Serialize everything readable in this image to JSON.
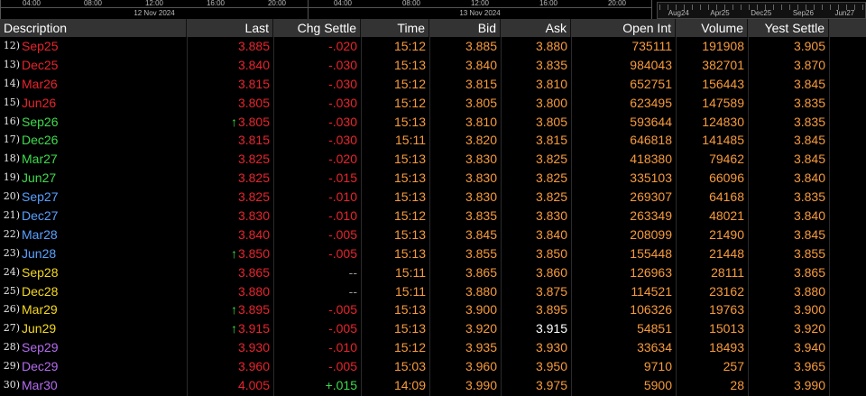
{
  "top": {
    "chart1": {
      "ticks": [
        "04:00",
        "08:00",
        "12:00",
        "16:00",
        "20:00"
      ],
      "date": "12 Nov 2024"
    },
    "chart2": {
      "ticks": [
        "04:00",
        "08:00",
        "12:00",
        "16:00",
        "20:00"
      ],
      "date": "13 Nov 2024"
    },
    "calendar": {
      "labels": [
        "Aug24",
        "Apr25",
        "Dec25",
        "Sep26",
        "Jun27"
      ]
    }
  },
  "colors": {
    "red": "#e8242d",
    "orange": "#f79a3b",
    "green": "#3ddc4c",
    "blue": "#5aa0ff",
    "yellow": "#f5d81e",
    "purple": "#b46cf0",
    "white": "#ffffff"
  },
  "header": {
    "description": "Description",
    "last": "Last",
    "chg_settle": "Chg Settle",
    "time": "Time",
    "bid": "Bid",
    "ask": "Ask",
    "open_int": "Open Int",
    "volume": "Volume",
    "yest_settle": "Yest Settle"
  },
  "rows": [
    {
      "idx": "12)",
      "sym": "Sep25",
      "symc": "red",
      "last": "3.885",
      "arrow": "",
      "chg": "-.020",
      "chgc": "red",
      "time": "15:12",
      "bid": "3.885",
      "ask": "3.880",
      "askc": "orange",
      "oi": "735111",
      "vol": "191908",
      "ys": "3.905"
    },
    {
      "idx": "13)",
      "sym": "Dec25",
      "symc": "red",
      "last": "3.840",
      "arrow": "",
      "chg": "-.030",
      "chgc": "red",
      "time": "15:13",
      "bid": "3.840",
      "ask": "3.835",
      "askc": "orange",
      "oi": "984043",
      "vol": "382701",
      "ys": "3.870"
    },
    {
      "idx": "14)",
      "sym": "Mar26",
      "symc": "red",
      "last": "3.815",
      "arrow": "",
      "chg": "-.030",
      "chgc": "red",
      "time": "15:12",
      "bid": "3.815",
      "ask": "3.810",
      "askc": "orange",
      "oi": "652751",
      "vol": "156443",
      "ys": "3.845"
    },
    {
      "idx": "15)",
      "sym": "Jun26",
      "symc": "red",
      "last": "3.805",
      "arrow": "",
      "chg": "-.030",
      "chgc": "red",
      "time": "15:12",
      "bid": "3.805",
      "ask": "3.800",
      "askc": "orange",
      "oi": "623495",
      "vol": "147589",
      "ys": "3.835"
    },
    {
      "idx": "16)",
      "sym": "Sep26",
      "symc": "green",
      "last": "3.805",
      "arrow": "↑",
      "chg": "-.030",
      "chgc": "red",
      "time": "15:13",
      "bid": "3.810",
      "ask": "3.805",
      "askc": "orange",
      "oi": "593644",
      "vol": "124830",
      "ys": "3.835"
    },
    {
      "idx": "17)",
      "sym": "Dec26",
      "symc": "green",
      "last": "3.815",
      "arrow": "",
      "chg": "-.030",
      "chgc": "red",
      "time": "15:11",
      "bid": "3.820",
      "ask": "3.815",
      "askc": "orange",
      "oi": "646818",
      "vol": "141485",
      "ys": "3.845"
    },
    {
      "idx": "18)",
      "sym": "Mar27",
      "symc": "green",
      "last": "3.825",
      "arrow": "",
      "chg": "-.020",
      "chgc": "red",
      "time": "15:13",
      "bid": "3.830",
      "ask": "3.825",
      "askc": "orange",
      "oi": "418380",
      "vol": "79462",
      "ys": "3.845"
    },
    {
      "idx": "19)",
      "sym": "Jun27",
      "symc": "green",
      "last": "3.825",
      "arrow": "",
      "chg": "-.015",
      "chgc": "red",
      "time": "15:13",
      "bid": "3.830",
      "ask": "3.825",
      "askc": "orange",
      "oi": "335103",
      "vol": "66096",
      "ys": "3.840"
    },
    {
      "idx": "20)",
      "sym": "Sep27",
      "symc": "blue",
      "last": "3.825",
      "arrow": "",
      "chg": "-.010",
      "chgc": "red",
      "time": "15:13",
      "bid": "3.830",
      "ask": "3.825",
      "askc": "orange",
      "oi": "269307",
      "vol": "64168",
      "ys": "3.835"
    },
    {
      "idx": "21)",
      "sym": "Dec27",
      "symc": "blue",
      "last": "3.830",
      "arrow": "",
      "chg": "-.010",
      "chgc": "red",
      "time": "15:12",
      "bid": "3.835",
      "ask": "3.830",
      "askc": "orange",
      "oi": "263349",
      "vol": "48021",
      "ys": "3.840"
    },
    {
      "idx": "22)",
      "sym": "Mar28",
      "symc": "blue",
      "last": "3.840",
      "arrow": "",
      "chg": "-.005",
      "chgc": "red",
      "time": "15:13",
      "bid": "3.845",
      "ask": "3.840",
      "askc": "orange",
      "oi": "208099",
      "vol": "21490",
      "ys": "3.845"
    },
    {
      "idx": "23)",
      "sym": "Jun28",
      "symc": "blue",
      "last": "3.850",
      "arrow": "↑",
      "chg": "-.005",
      "chgc": "red",
      "time": "15:13",
      "bid": "3.855",
      "ask": "3.850",
      "askc": "orange",
      "oi": "155448",
      "vol": "21448",
      "ys": "3.855"
    },
    {
      "idx": "24)",
      "sym": "Sep28",
      "symc": "yellow",
      "last": "3.865",
      "arrow": "",
      "chg": "--",
      "chgc": "grey",
      "time": "15:11",
      "bid": "3.865",
      "ask": "3.860",
      "askc": "orange",
      "oi": "126963",
      "vol": "28111",
      "ys": "3.865"
    },
    {
      "idx": "25)",
      "sym": "Dec28",
      "symc": "yellow",
      "last": "3.880",
      "arrow": "",
      "chg": "--",
      "chgc": "grey",
      "time": "15:11",
      "bid": "3.880",
      "ask": "3.875",
      "askc": "orange",
      "oi": "114521",
      "vol": "23162",
      "ys": "3.880"
    },
    {
      "idx": "26)",
      "sym": "Mar29",
      "symc": "yellow",
      "last": "3.895",
      "arrow": "↑",
      "chg": "-.005",
      "chgc": "red",
      "time": "15:13",
      "bid": "3.900",
      "ask": "3.895",
      "askc": "orange",
      "oi": "106326",
      "vol": "19763",
      "ys": "3.900"
    },
    {
      "idx": "27)",
      "sym": "Jun29",
      "symc": "yellow",
      "last": "3.915",
      "arrow": "↑",
      "chg": "-.005",
      "chgc": "red",
      "time": "15:13",
      "bid": "3.920",
      "ask": "3.915",
      "askc": "white",
      "oi": "54851",
      "vol": "15013",
      "ys": "3.920"
    },
    {
      "idx": "28)",
      "sym": "Sep29",
      "symc": "purple",
      "last": "3.930",
      "arrow": "",
      "chg": "-.010",
      "chgc": "red",
      "time": "15:12",
      "bid": "3.935",
      "ask": "3.930",
      "askc": "orange",
      "oi": "33634",
      "vol": "18493",
      "ys": "3.940"
    },
    {
      "idx": "29)",
      "sym": "Dec29",
      "symc": "purple",
      "last": "3.960",
      "arrow": "",
      "chg": "-.005",
      "chgc": "red",
      "time": "15:03",
      "bid": "3.960",
      "ask": "3.950",
      "askc": "orange",
      "oi": "9710",
      "vol": "257",
      "ys": "3.965"
    },
    {
      "idx": "30)",
      "sym": "Mar30",
      "symc": "purple",
      "last": "4.005",
      "arrow": "",
      "chg": "+.015",
      "chgc": "green",
      "time": "14:09",
      "bid": "3.990",
      "ask": "3.975",
      "askc": "orange",
      "oi": "5900",
      "vol": "28",
      "ys": "3.990"
    }
  ]
}
